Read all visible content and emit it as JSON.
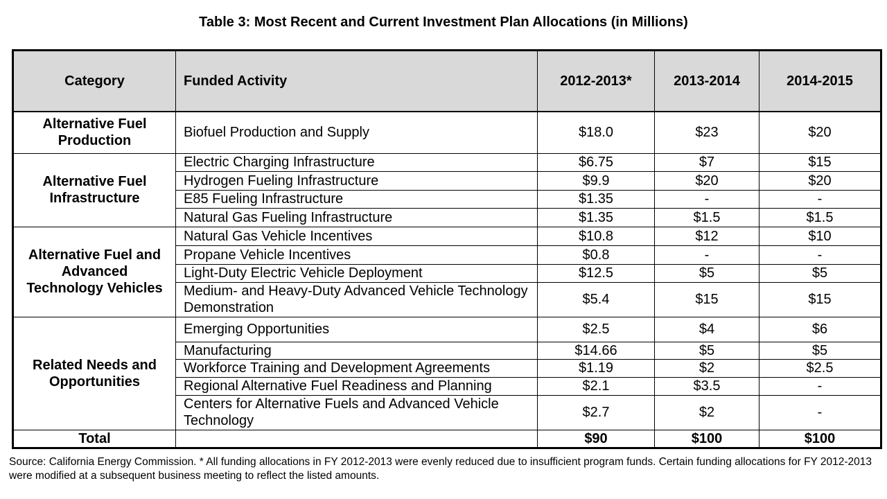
{
  "title": "Table 3: Most Recent and Current Investment Plan Allocations (in Millions)",
  "headers": {
    "category": "Category",
    "activity": "Funded Activity",
    "y1": "2012-2013*",
    "y2": "2013-2014",
    "y3": "2014-2015"
  },
  "groups": [
    {
      "category": "Alternative Fuel Production",
      "rows": [
        {
          "activity": "Biofuel Production and Supply",
          "y1": "$18.0",
          "y2": "$23",
          "y3": "$20"
        }
      ]
    },
    {
      "category": "Alternative Fuel Infrastructure",
      "rows": [
        {
          "activity": "Electric Charging Infrastructure",
          "y1": "$6.75",
          "y2": "$7",
          "y3": "$15"
        },
        {
          "activity": "Hydrogen Fueling Infrastructure",
          "y1": "$9.9",
          "y2": "$20",
          "y3": "$20"
        },
        {
          "activity": "E85 Fueling Infrastructure",
          "y1": "$1.35",
          "y2": "-",
          "y3": "-"
        },
        {
          "activity": "Natural Gas Fueling Infrastructure",
          "y1": "$1.35",
          "y2": "$1.5",
          "y3": "$1.5"
        }
      ]
    },
    {
      "category": "Alternative Fuel and Advanced Technology Vehicles",
      "rows": [
        {
          "activity": "Natural Gas Vehicle Incentives",
          "y1": "$10.8",
          "y2": "$12",
          "y3": "$10"
        },
        {
          "activity": "Propane Vehicle Incentives",
          "y1": "$0.8",
          "y2": "-",
          "y3": "-"
        },
        {
          "activity": "Light-Duty Electric Vehicle Deployment",
          "y1": "$12.5",
          "y2": "$5",
          "y3": "$5"
        },
        {
          "activity": "Medium- and Heavy-Duty Advanced Vehicle Technology Demonstration",
          "y1": "$5.4",
          "y2": "$15",
          "y3": "$15"
        }
      ]
    },
    {
      "category": "Related Needs and Opportunities",
      "rows": [
        {
          "activity": "Emerging Opportunities",
          "y1": "$2.5",
          "y2": "$4",
          "y3": "$6"
        },
        {
          "activity": "Manufacturing",
          "y1": "$14.66",
          "y2": "$5",
          "y3": "$5"
        },
        {
          "activity": "Workforce Training and Development Agreements",
          "y1": "$1.19",
          "y2": "$2",
          "y3": "$2.5"
        },
        {
          "activity": "Regional Alternative Fuel Readiness and Planning",
          "y1": "$2.1",
          "y2": "$3.5",
          "y3": "-"
        },
        {
          "activity": "Centers for Alternative Fuels and Advanced Vehicle Technology",
          "y1": "$2.7",
          "y2": "$2",
          "y3": "-"
        }
      ]
    }
  ],
  "total": {
    "label": "Total",
    "activity": "",
    "y1": "$90",
    "y2": "$100",
    "y3": "$100"
  },
  "source": "Source: California Energy Commission. * All funding allocations in FY 2012-2013 were evenly reduced due to insufficient program funds. Certain funding allocations for FY 2012-2013 were modified at a subsequent business meeting to reflect the listed amounts."
}
